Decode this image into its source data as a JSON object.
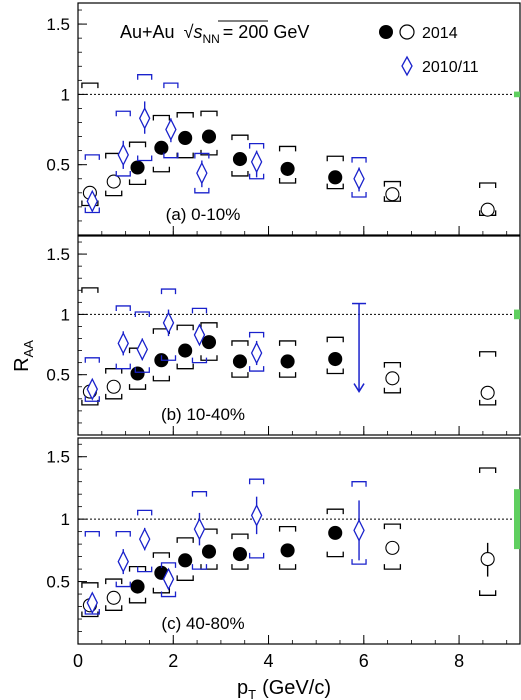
{
  "chart_data": {
    "type": "scatter",
    "title": "",
    "system_label": "Au+Au",
    "energy_label": "= 200 GeV",
    "sqrt_symbol": "√",
    "energy_var": "s",
    "energy_sub": "NN",
    "ylabel": "R",
    "ylabel_sub": "AA",
    "xlabel": "p",
    "xlabel_sub": "T",
    "xlabel_unit": "(GeV/c)",
    "xlim": [
      0,
      9.3
    ],
    "ylim": [
      0,
      1.65
    ],
    "x_ticks": [
      "0",
      "2",
      "4",
      "6",
      "8"
    ],
    "x_tick_values": [
      0,
      2,
      4,
      6,
      8
    ],
    "y_ticks": [
      "0.5",
      "1",
      "1.5"
    ],
    "y_tick_values": [
      0.5,
      1.0,
      1.5
    ],
    "reference_line": 1.0,
    "legend": {
      "placement": "top-right",
      "entries": [
        {
          "label": "2014",
          "series": "2014"
        },
        {
          "label": "2010/11",
          "series": "2010/11"
        }
      ]
    },
    "colors": {
      "series_2014": "#000000",
      "series_2010": "#1a22cc",
      "norm_uncertainty": "#5fcf5f",
      "reference": "#000000"
    },
    "panels": [
      {
        "label": "(a)  0-10%",
        "norm_uncertainty": [
          0.98,
          1.02
        ],
        "series": [
          {
            "name": "2014",
            "marker": "circle",
            "points": [
              {
                "x": 0.25,
                "y": 0.3,
                "sys": [
                  0.21,
                  1.08
                ],
                "filled": false
              },
              {
                "x": 0.75,
                "y": 0.38,
                "sys": [
                  0.28,
                  0.58
                ],
                "filled": false
              },
              {
                "x": 1.25,
                "y": 0.48,
                "sys": [
                  0.36,
                  0.66
                ],
                "filled": true
              },
              {
                "x": 1.75,
                "y": 0.62,
                "sys": [
                  0.45,
                  0.85
                ],
                "filled": true
              },
              {
                "x": 2.25,
                "y": 0.69,
                "sys": [
                  0.55,
                  0.87
                ],
                "filled": true
              },
              {
                "x": 2.75,
                "y": 0.7,
                "sys": [
                  0.57,
                  0.88
                ],
                "filled": true
              },
              {
                "x": 3.4,
                "y": 0.54,
                "sys": [
                  0.42,
                  0.71
                ],
                "filled": true
              },
              {
                "x": 4.4,
                "y": 0.47,
                "sys": [
                  0.37,
                  0.63
                ],
                "filled": true
              },
              {
                "x": 5.4,
                "y": 0.41,
                "sys": [
                  0.33,
                  0.56
                ],
                "filled": true
              },
              {
                "x": 6.6,
                "y": 0.29,
                "sys": [
                  0.24,
                  0.38
                ],
                "filled": false
              },
              {
                "x": 8.6,
                "y": 0.18,
                "sys": [
                  0.14,
                  0.37
                ],
                "filled": false
              }
            ]
          },
          {
            "name": "2010/11",
            "marker": "diamond",
            "points": [
              {
                "x": 0.3,
                "y": 0.24,
                "stat": [
                  0.17,
                  0.3
                ],
                "sys": [
                  0.16,
                  0.57
                ]
              },
              {
                "x": 0.95,
                "y": 0.57,
                "stat": [
                  0.47,
                  0.67
                ],
                "sys": [
                  0.42,
                  0.88
                ]
              },
              {
                "x": 1.4,
                "y": 0.83,
                "stat": [
                  0.72,
                  0.95
                ],
                "sys": [
                  0.53,
                  1.14
                ]
              },
              {
                "x": 1.95,
                "y": 0.75,
                "stat": [
                  0.66,
                  0.83
                ],
                "sys": [
                  0.55,
                  1.08
                ]
              },
              {
                "x": 2.6,
                "y": 0.44,
                "stat": [
                  0.34,
                  0.53
                ],
                "sys": [
                  0.3,
                  0.58
                ]
              },
              {
                "x": 3.75,
                "y": 0.52,
                "stat": [
                  0.41,
                  0.6
                ],
                "sys": [
                  0.4,
                  0.65
                ]
              },
              {
                "x": 5.9,
                "y": 0.4,
                "stat": [
                  0.31,
                  0.48
                ],
                "sys": [
                  0.27,
                  0.55
                ]
              }
            ]
          }
        ]
      },
      {
        "label": "(b)  10-40%",
        "norm_uncertainty": [
          0.96,
          1.04
        ],
        "series": [
          {
            "name": "2014",
            "marker": "circle",
            "points": [
              {
                "x": 0.25,
                "y": 0.36,
                "sys": [
                  0.25,
                  1.22
                ],
                "filled": false
              },
              {
                "x": 0.75,
                "y": 0.4,
                "sys": [
                  0.3,
                  0.55
                ],
                "filled": false
              },
              {
                "x": 1.25,
                "y": 0.51,
                "sys": [
                  0.38,
                  0.72
                ],
                "filled": true
              },
              {
                "x": 1.75,
                "y": 0.62,
                "sys": [
                  0.45,
                  0.88
                ],
                "filled": true
              },
              {
                "x": 2.25,
                "y": 0.7,
                "sys": [
                  0.55,
                  0.91
                ],
                "filled": true
              },
              {
                "x": 2.75,
                "y": 0.77,
                "sys": [
                  0.62,
                  0.93
                ],
                "filled": true
              },
              {
                "x": 3.4,
                "y": 0.61,
                "sys": [
                  0.48,
                  0.78
                ],
                "filled": true
              },
              {
                "x": 4.4,
                "y": 0.61,
                "sys": [
                  0.48,
                  0.78
                ],
                "filled": true
              },
              {
                "x": 5.4,
                "y": 0.63,
                "sys": [
                  0.51,
                  0.81
                ],
                "filled": true
              },
              {
                "x": 6.6,
                "y": 0.47,
                "sys": [
                  0.35,
                  0.6
                ],
                "filled": false
              },
              {
                "x": 8.6,
                "y": 0.35,
                "sys": [
                  0.25,
                  0.69
                ],
                "filled": false
              }
            ]
          },
          {
            "name": "2010/11",
            "marker": "diamond",
            "points": [
              {
                "x": 0.3,
                "y": 0.38,
                "stat": [
                  0.32,
                  0.44
                ],
                "sys": [
                  0.28,
                  0.64
                ]
              },
              {
                "x": 0.95,
                "y": 0.76,
                "stat": [
                  0.66,
                  0.86
                ],
                "sys": [
                  0.55,
                  1.07
                ]
              },
              {
                "x": 1.35,
                "y": 0.71,
                "stat": [
                  0.62,
                  0.8
                ],
                "sys": [
                  0.52,
                  1.02
                ]
              },
              {
                "x": 1.9,
                "y": 0.93,
                "stat": [
                  0.82,
                  1.04
                ],
                "sys": [
                  0.62,
                  1.21
                ]
              },
              {
                "x": 2.55,
                "y": 0.83,
                "stat": [
                  0.76,
                  0.9
                ],
                "sys": [
                  0.6,
                  1.05
                ]
              },
              {
                "x": 3.75,
                "y": 0.68,
                "stat": [
                  0.58,
                  0.78
                ],
                "sys": [
                  0.53,
                  0.85
                ]
              },
              {
                "x": 5.9,
                "y": null,
                "upper_limit": 1.09,
                "arrow_to": 0.36
              }
            ]
          }
        ]
      },
      {
        "label": "(c)  40-80%",
        "norm_uncertainty": [
          0.76,
          1.24
        ],
        "series": [
          {
            "name": "2014",
            "marker": "circle",
            "points": [
              {
                "x": 0.25,
                "y": 0.31,
                "sys": [
                  0.22,
                  0.49
                ],
                "filled": false
              },
              {
                "x": 0.75,
                "y": 0.37,
                "sys": [
                  0.27,
                  0.52
                ],
                "filled": false
              },
              {
                "x": 1.25,
                "y": 0.46,
                "sys": [
                  0.33,
                  0.62
                ],
                "filled": true
              },
              {
                "x": 1.75,
                "y": 0.57,
                "sys": [
                  0.41,
                  0.73
                ],
                "filled": true
              },
              {
                "x": 2.25,
                "y": 0.67,
                "sys": [
                  0.51,
                  0.85
                ],
                "filled": true
              },
              {
                "x": 2.75,
                "y": 0.74,
                "sys": [
                  0.6,
                  0.92
                ],
                "filled": true
              },
              {
                "x": 3.4,
                "y": 0.72,
                "sys": [
                  0.6,
                  0.88
                ],
                "filled": true
              },
              {
                "x": 4.4,
                "y": 0.75,
                "sys": [
                  0.6,
                  0.94
                ],
                "filled": true
              },
              {
                "x": 5.4,
                "y": 0.89,
                "sys": [
                  0.7,
                  1.08
                ],
                "filled": true
              },
              {
                "x": 6.6,
                "y": 0.77,
                "sys": [
                  0.6,
                  0.96
                ],
                "filled": false
              },
              {
                "x": 8.6,
                "y": 0.68,
                "stat": [
                  0.54,
                  0.81
                ],
                "sys": [
                  0.39,
                  1.41
                ],
                "filled": false
              }
            ]
          },
          {
            "name": "2010/11",
            "marker": "diamond",
            "points": [
              {
                "x": 0.3,
                "y": 0.33,
                "stat": [
                  0.27,
                  0.4
                ],
                "sys": [
                  0.24,
                  0.9
                ]
              },
              {
                "x": 0.95,
                "y": 0.66,
                "stat": [
                  0.56,
                  0.76
                ],
                "sys": [
                  0.46,
                  0.9
                ]
              },
              {
                "x": 1.4,
                "y": 0.84,
                "stat": [
                  0.75,
                  0.93
                ],
                "sys": [
                  0.58,
                  1.07
                ]
              },
              {
                "x": 1.9,
                "y": 0.52,
                "stat": [
                  0.44,
                  0.6
                ],
                "sys": [
                  0.38,
                  0.65
                ]
              },
              {
                "x": 2.55,
                "y": 0.92,
                "stat": [
                  0.79,
                  1.05
                ],
                "sys": [
                  0.6,
                  1.22
                ]
              },
              {
                "x": 3.75,
                "y": 1.03,
                "stat": [
                  0.88,
                  1.18
                ],
                "sys": [
                  0.69,
                  1.32
                ]
              },
              {
                "x": 5.9,
                "y": 0.91,
                "stat": [
                  0.67,
                  1.15
                ],
                "sys": [
                  0.64,
                  1.3
                ]
              }
            ]
          }
        ]
      }
    ]
  }
}
